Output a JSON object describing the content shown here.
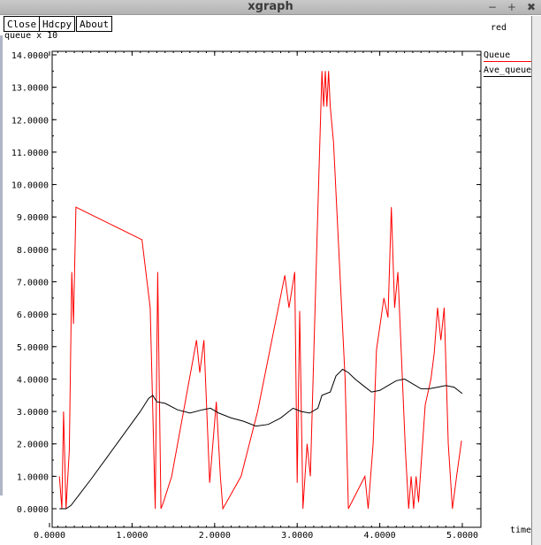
{
  "window": {
    "title": "xgraph"
  },
  "window_controls": {
    "minimize": "−",
    "maximize": "+",
    "close": "✖"
  },
  "toolbar": {
    "close_label": "Close",
    "hdcpy_label": "Hdcpy",
    "about_label": "About"
  },
  "legend": {
    "title": "red",
    "items": [
      {
        "label": "Queue",
        "color": "#ff0000"
      },
      {
        "label": "Ave_queue",
        "color": "#000000"
      }
    ]
  },
  "colors": {
    "queue": "#ff0000",
    "ave_queue": "#000000"
  },
  "chart_data": {
    "type": "line",
    "title": "red",
    "ylabel": "queue x 10",
    "xlabel": "time",
    "xlim": [
      0,
      5
    ],
    "ylim": [
      0,
      14
    ],
    "x_ticks": [
      "0.0000",
      "1.0000",
      "2.0000",
      "3.0000",
      "4.0000",
      "5.0000"
    ],
    "y_ticks": [
      "0.0000",
      "1.0000",
      "2.0000",
      "3.0000",
      "4.0000",
      "5.0000",
      "6.0000",
      "7.0000",
      "8.0000",
      "9.0000",
      "10.0000",
      "11.0000",
      "12.0000",
      "13.0000",
      "14.0000"
    ],
    "series": [
      {
        "name": "Queue",
        "color": "#ff0000",
        "points": [
          [
            0.12,
            1.0
          ],
          [
            0.15,
            0.0
          ],
          [
            0.17,
            3.0
          ],
          [
            0.2,
            0.0
          ],
          [
            0.24,
            1.8
          ],
          [
            0.27,
            7.3
          ],
          [
            0.29,
            5.7
          ],
          [
            0.32,
            9.3
          ],
          [
            1.12,
            8.3
          ],
          [
            1.22,
            6.2
          ],
          [
            1.28,
            0.0
          ],
          [
            1.31,
            7.3
          ],
          [
            1.35,
            0.0
          ],
          [
            1.38,
            0.2
          ],
          [
            1.48,
            1.0
          ],
          [
            1.78,
            5.2
          ],
          [
            1.82,
            4.2
          ],
          [
            1.87,
            5.2
          ],
          [
            1.94,
            0.8
          ],
          [
            2.02,
            3.3
          ],
          [
            2.07,
            1.0
          ],
          [
            2.1,
            0.0
          ],
          [
            2.32,
            1.0
          ],
          [
            2.52,
            3.0
          ],
          [
            2.85,
            7.2
          ],
          [
            2.9,
            6.2
          ],
          [
            2.97,
            7.3
          ],
          [
            3.0,
            0.8
          ],
          [
            3.03,
            6.1
          ],
          [
            3.07,
            0.0
          ],
          [
            3.12,
            2.0
          ],
          [
            3.16,
            1.0
          ],
          [
            3.24,
            8.3
          ],
          [
            3.3,
            13.5
          ],
          [
            3.32,
            12.4
          ],
          [
            3.34,
            13.5
          ],
          [
            3.36,
            12.4
          ],
          [
            3.38,
            13.5
          ],
          [
            3.4,
            12.4
          ],
          [
            3.44,
            11.3
          ],
          [
            3.58,
            4.0
          ],
          [
            3.62,
            0.0
          ],
          [
            3.82,
            1.0
          ],
          [
            3.86,
            0.0
          ],
          [
            3.92,
            2.0
          ],
          [
            3.96,
            4.9
          ],
          [
            4.05,
            6.5
          ],
          [
            4.1,
            5.9
          ],
          [
            4.14,
            9.3
          ],
          [
            4.18,
            6.2
          ],
          [
            4.22,
            7.3
          ],
          [
            4.31,
            1.8
          ],
          [
            4.35,
            0.0
          ],
          [
            4.38,
            1.0
          ],
          [
            4.41,
            0.0
          ],
          [
            4.44,
            1.0
          ],
          [
            4.47,
            0.2
          ],
          [
            4.55,
            3.2
          ],
          [
            4.62,
            4.0
          ],
          [
            4.66,
            4.8
          ],
          [
            4.7,
            6.2
          ],
          [
            4.74,
            5.2
          ],
          [
            4.78,
            6.2
          ],
          [
            4.83,
            2.0
          ],
          [
            4.88,
            0.0
          ],
          [
            4.93,
            1.0
          ],
          [
            4.99,
            2.1
          ]
        ]
      },
      {
        "name": "Ave_queue",
        "color": "#000000",
        "points": [
          [
            0.12,
            0.0
          ],
          [
            0.2,
            0.0
          ],
          [
            0.26,
            0.1
          ],
          [
            0.35,
            0.4
          ],
          [
            0.5,
            0.9
          ],
          [
            0.7,
            1.6
          ],
          [
            0.9,
            2.3
          ],
          [
            1.1,
            3.0
          ],
          [
            1.2,
            3.4
          ],
          [
            1.25,
            3.5
          ],
          [
            1.3,
            3.3
          ],
          [
            1.4,
            3.25
          ],
          [
            1.55,
            3.05
          ],
          [
            1.7,
            2.95
          ],
          [
            1.85,
            3.05
          ],
          [
            1.95,
            3.1
          ],
          [
            2.05,
            2.95
          ],
          [
            2.2,
            2.8
          ],
          [
            2.35,
            2.7
          ],
          [
            2.5,
            2.55
          ],
          [
            2.65,
            2.6
          ],
          [
            2.8,
            2.8
          ],
          [
            2.95,
            3.1
          ],
          [
            3.05,
            3.0
          ],
          [
            3.15,
            2.95
          ],
          [
            3.25,
            3.1
          ],
          [
            3.3,
            3.5
          ],
          [
            3.4,
            3.6
          ],
          [
            3.47,
            4.1
          ],
          [
            3.55,
            4.3
          ],
          [
            3.62,
            4.2
          ],
          [
            3.7,
            4.0
          ],
          [
            3.8,
            3.8
          ],
          [
            3.9,
            3.6
          ],
          [
            4.0,
            3.65
          ],
          [
            4.1,
            3.8
          ],
          [
            4.2,
            3.95
          ],
          [
            4.3,
            4.0
          ],
          [
            4.4,
            3.85
          ],
          [
            4.5,
            3.7
          ],
          [
            4.6,
            3.7
          ],
          [
            4.7,
            3.75
          ],
          [
            4.8,
            3.8
          ],
          [
            4.9,
            3.75
          ],
          [
            5.0,
            3.55
          ]
        ]
      }
    ]
  }
}
